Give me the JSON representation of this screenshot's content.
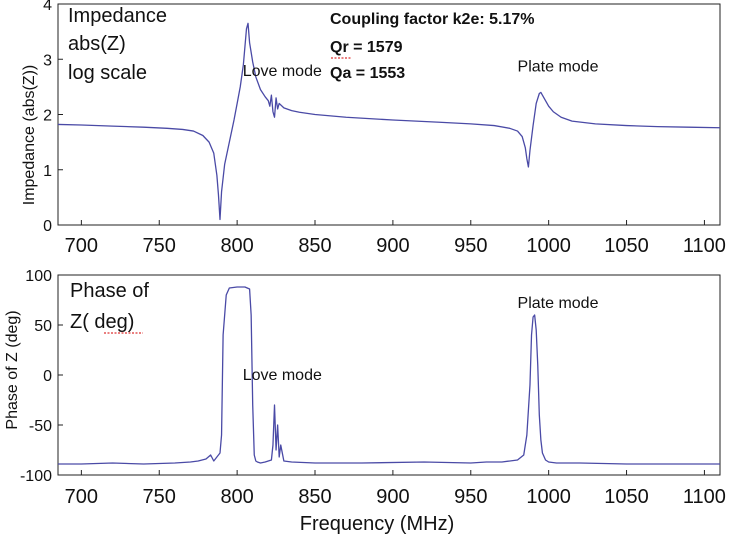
{
  "chart_data": [
    {
      "type": "line",
      "panel": "top",
      "title_lines": [
        "Impedance",
        "abs(Z)",
        "log scale"
      ],
      "ylabel": "Impedance (abs(Z))",
      "xlabel": "",
      "xlim": [
        685,
        1110
      ],
      "ylim": [
        0,
        4
      ],
      "yticks": [
        0,
        1,
        2,
        3,
        4
      ],
      "xticks": [
        700,
        750,
        800,
        850,
        900,
        950,
        1000,
        1050,
        1100
      ],
      "grid": false,
      "line_color": "#4a4aa6",
      "info_lines": [
        "Coupling factor k2e: 5.17%",
        "Qr = 1579",
        "Qa = 1553"
      ],
      "annotations": [
        {
          "text": "Love mode",
          "x": 829,
          "y": 2.7
        },
        {
          "text": "Plate mode",
          "x": 1006,
          "y": 2.78
        }
      ],
      "series": [
        {
          "x": [
            685,
            700,
            720,
            740,
            755,
            765,
            772,
            778,
            782,
            785,
            787,
            788,
            789,
            790,
            792,
            795,
            798,
            800,
            802,
            804,
            806,
            807,
            808,
            810,
            812,
            815,
            818,
            820,
            821,
            822,
            823,
            824,
            825,
            826,
            827,
            830,
            835,
            840,
            850,
            870,
            900,
            930,
            950,
            965,
            975,
            980,
            983,
            985,
            986,
            987,
            988,
            990,
            992,
            994,
            995,
            996,
            998,
            1000,
            1003,
            1008,
            1015,
            1030,
            1050,
            1070,
            1090,
            1110
          ],
          "y": [
            1.82,
            1.81,
            1.79,
            1.77,
            1.75,
            1.73,
            1.7,
            1.62,
            1.5,
            1.3,
            0.9,
            0.55,
            0.1,
            0.6,
            1.1,
            1.5,
            1.9,
            2.2,
            2.5,
            2.9,
            3.55,
            3.65,
            3.3,
            2.95,
            2.68,
            2.45,
            2.32,
            2.25,
            2.15,
            2.35,
            2.05,
            1.95,
            2.3,
            2.1,
            2.2,
            2.12,
            2.07,
            2.04,
            2.0,
            1.95,
            1.9,
            1.86,
            1.83,
            1.8,
            1.75,
            1.7,
            1.6,
            1.4,
            1.2,
            1.05,
            1.35,
            1.8,
            2.2,
            2.38,
            2.4,
            2.35,
            2.25,
            2.15,
            2.05,
            1.95,
            1.88,
            1.83,
            1.8,
            1.78,
            1.77,
            1.76
          ]
        }
      ]
    },
    {
      "type": "line",
      "panel": "bottom",
      "title_lines": [
        "Phase  of",
        "Z( deg)"
      ],
      "ylabel": "Phase of Z (deg)",
      "xlabel": "Frequency (MHz)",
      "xlim": [
        685,
        1110
      ],
      "ylim": [
        -100,
        100
      ],
      "yticks": [
        100,
        50,
        0,
        -50,
        -100
      ],
      "xticks": [
        700,
        750,
        800,
        850,
        900,
        950,
        1000,
        1050,
        1100
      ],
      "grid": false,
      "line_color": "#4a4aa6",
      "annotations": [
        {
          "text": "Love mode",
          "x": 829,
          "y": -5
        },
        {
          "text": "Plate mode",
          "x": 1006,
          "y": 67
        }
      ],
      "series": [
        {
          "x": [
            685,
            700,
            720,
            740,
            760,
            770,
            775,
            780,
            783,
            785,
            787,
            789,
            790,
            791,
            793,
            795,
            800,
            805,
            808,
            809,
            810,
            811,
            812,
            813,
            815,
            818,
            820,
            822,
            823,
            824,
            825,
            826,
            827,
            828,
            830,
            835,
            850,
            880,
            920,
            950,
            960,
            970,
            980,
            984,
            986,
            988,
            989,
            990,
            991,
            992,
            993,
            994,
            995,
            996,
            998,
            1000,
            1005,
            1020,
            1050,
            1080,
            1110
          ],
          "y": [
            -89,
            -89,
            -88,
            -89,
            -88,
            -87,
            -86,
            -84,
            -80,
            -86,
            -82,
            -78,
            -60,
            40,
            80,
            87,
            88,
            88,
            86,
            60,
            -30,
            -80,
            -86,
            -87,
            -88,
            -87,
            -86,
            -85,
            -70,
            -30,
            -75,
            -50,
            -82,
            -70,
            -86,
            -87,
            -88,
            -88,
            -87,
            -88,
            -87,
            -87,
            -85,
            -80,
            -60,
            -10,
            40,
            58,
            60,
            45,
            10,
            -40,
            -65,
            -78,
            -85,
            -87,
            -88,
            -88,
            -89,
            -89,
            -89
          ]
        }
      ]
    }
  ]
}
